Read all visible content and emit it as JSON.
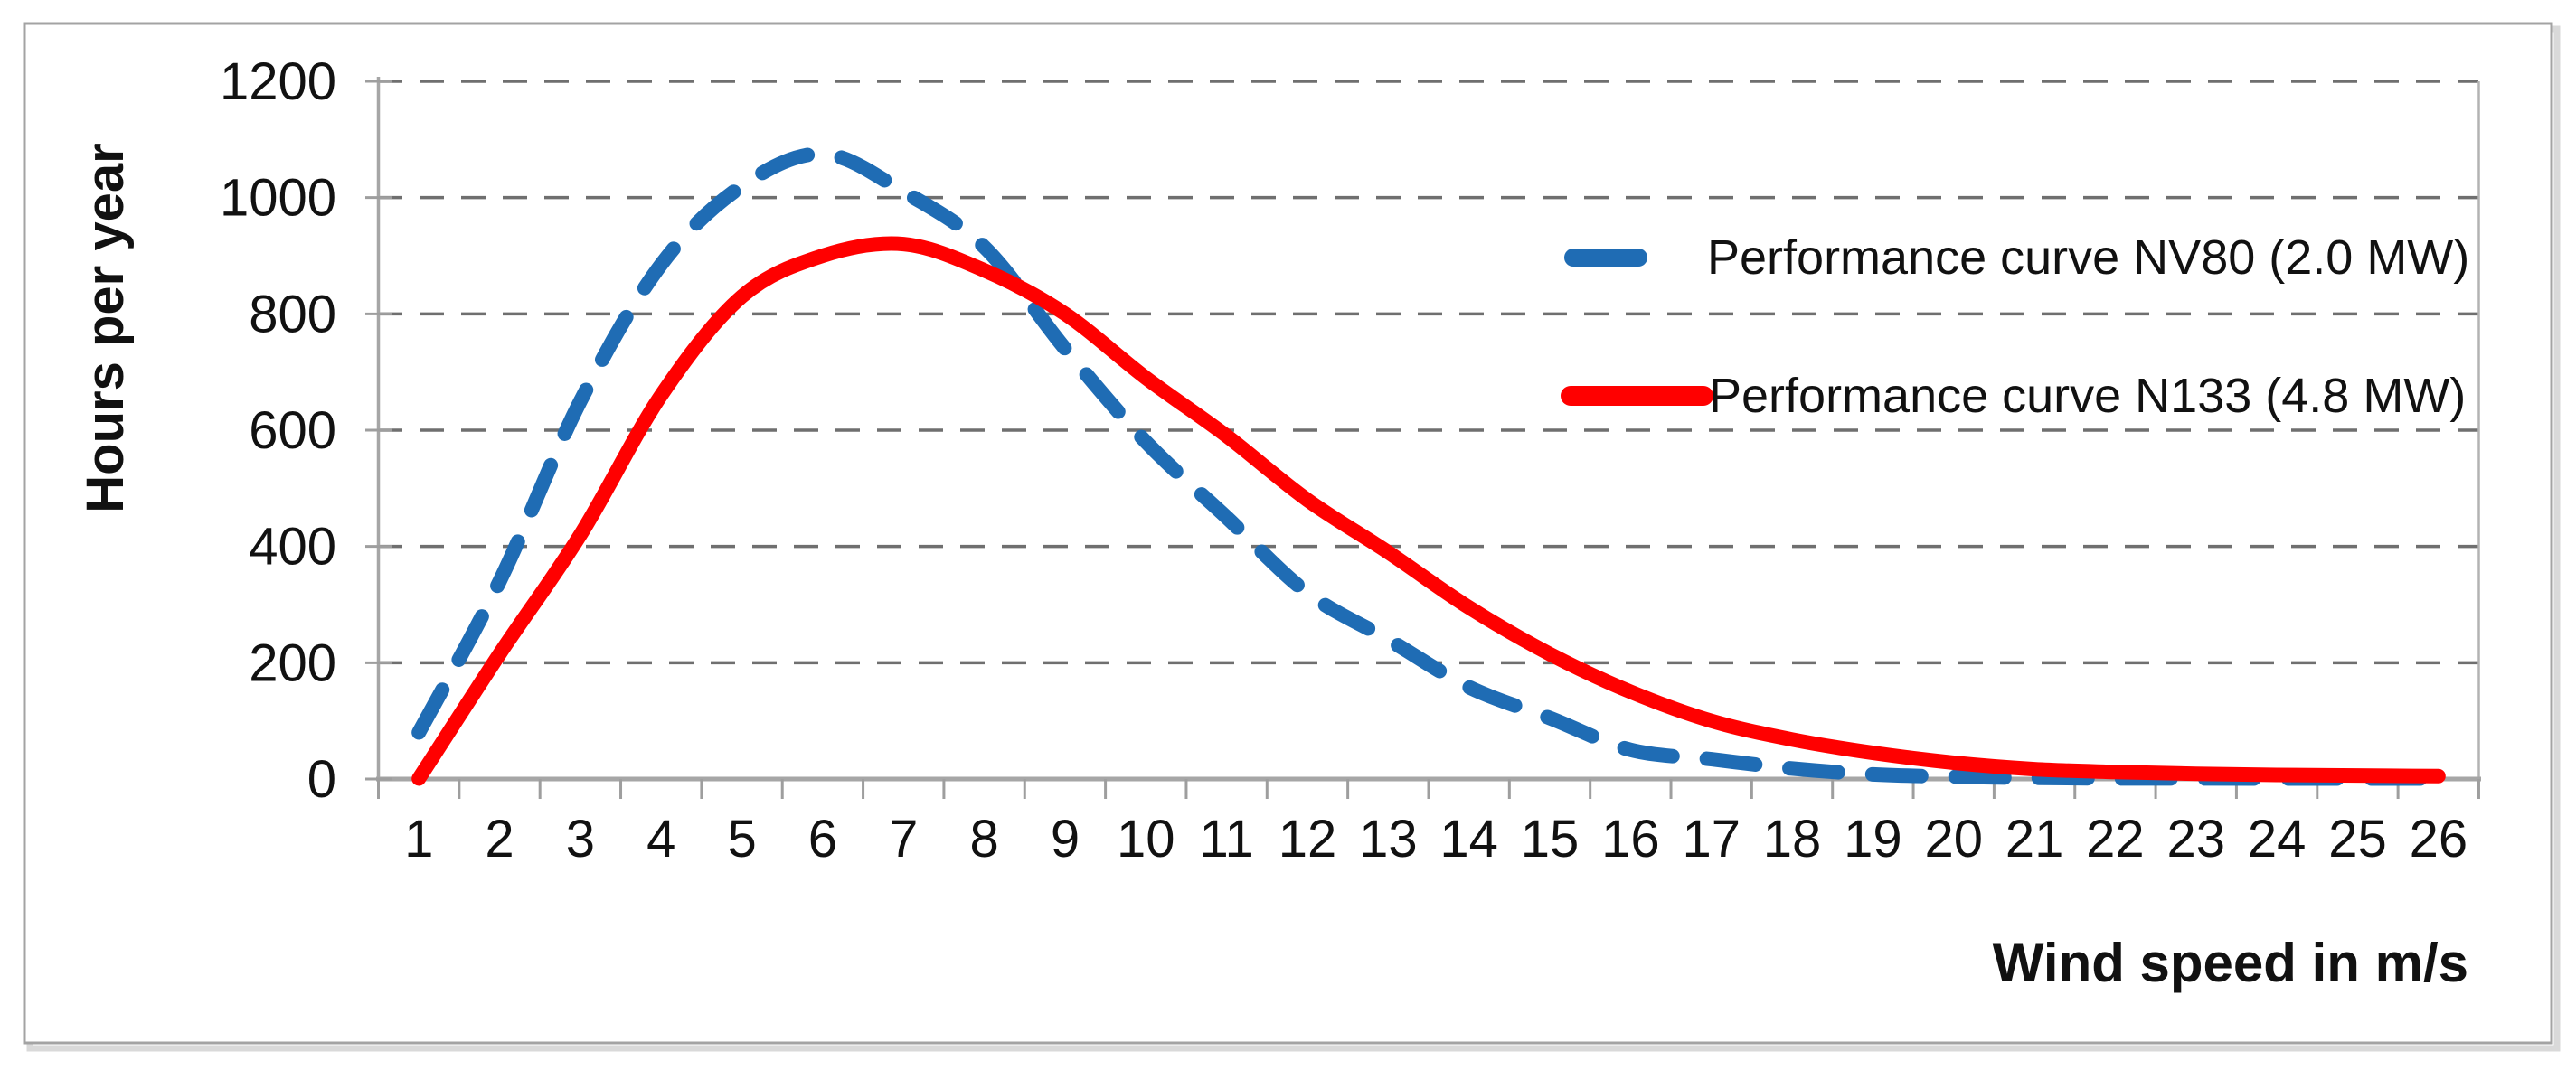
{
  "figure": {
    "background": "#ffffff",
    "frame_color": "#a3a3a3",
    "frame_shadow_color": "#d9d9d9"
  },
  "colors": {
    "series_nv80": "#1f6cb4",
    "series_n133": "#ff0000",
    "gridline": "#6f6f6f",
    "axis": "#a6a6a6",
    "tick": "#9e9e9e",
    "right_spine": "#b3b3b3",
    "text": "#111111"
  },
  "chart_data": {
    "type": "line",
    "title": "",
    "xlabel": "Wind speed in m/s",
    "ylabel": "Hours per year",
    "x_axis_type": "category",
    "categories": [
      1,
      2,
      3,
      4,
      5,
      6,
      7,
      8,
      9,
      10,
      11,
      12,
      13,
      14,
      15,
      16,
      17,
      18,
      19,
      20,
      21,
      22,
      23,
      24,
      25,
      26
    ],
    "series": [
      {
        "name": "Performance curve NV80 (2.0 MW)",
        "color": "#1f6cb4",
        "style": "dashed",
        "smooth": true,
        "values": [
          80,
          340,
          650,
          885,
          1020,
          1075,
          1010,
          915,
          740,
          580,
          450,
          320,
          240,
          158,
          105,
          50,
          34,
          18,
          8,
          4,
          2,
          1,
          1,
          0,
          0,
          0
        ]
      },
      {
        "name": "Performance curve N133 (4.8 MW)",
        "color": "#ff0000",
        "style": "solid",
        "smooth": true,
        "values": [
          0,
          215,
          420,
          660,
          830,
          900,
          920,
          875,
          800,
          690,
          590,
          480,
          390,
          295,
          215,
          150,
          100,
          68,
          45,
          28,
          17,
          12,
          9,
          7,
          6,
          5
        ]
      }
    ],
    "yticks": [
      0,
      200,
      400,
      600,
      800,
      1000,
      1200
    ],
    "ylim": [
      0,
      1200
    ],
    "grid": "horizontal-dashed",
    "legend_position": "inside-right"
  }
}
